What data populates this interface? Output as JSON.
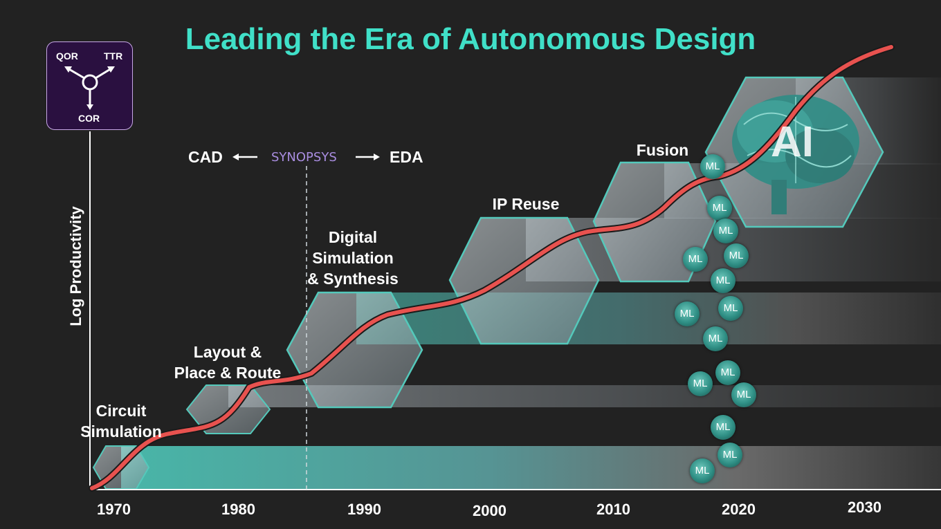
{
  "title": "Leading the Era of Autonomous Design",
  "y_axis_label": "Log Productivity",
  "badge": {
    "top_left": "QOR",
    "top_right": "TTR",
    "bottom": "COR"
  },
  "eras": {
    "circuit_simulation": "Circuit\nSimulation",
    "layout_place_route": "Layout &\nPlace & Route",
    "digital_simulation": "Digital\nSimulation\n& Synthesis",
    "ip_reuse": "IP Reuse",
    "fusion": "Fusion",
    "ai": "AI"
  },
  "transition": {
    "left": "CAD",
    "brand": "SYNOPSYS",
    "right": "EDA"
  },
  "ml_label": "ML",
  "years": [
    "1970",
    "1980",
    "1990",
    "2000",
    "2010",
    "2020",
    "2030"
  ],
  "colors": {
    "title": "#40e0c8",
    "curve": "#e8524f",
    "hexagon_edge": "#54c9bb",
    "brand": "#a98de0",
    "badge_bg": "#2a1040"
  }
}
